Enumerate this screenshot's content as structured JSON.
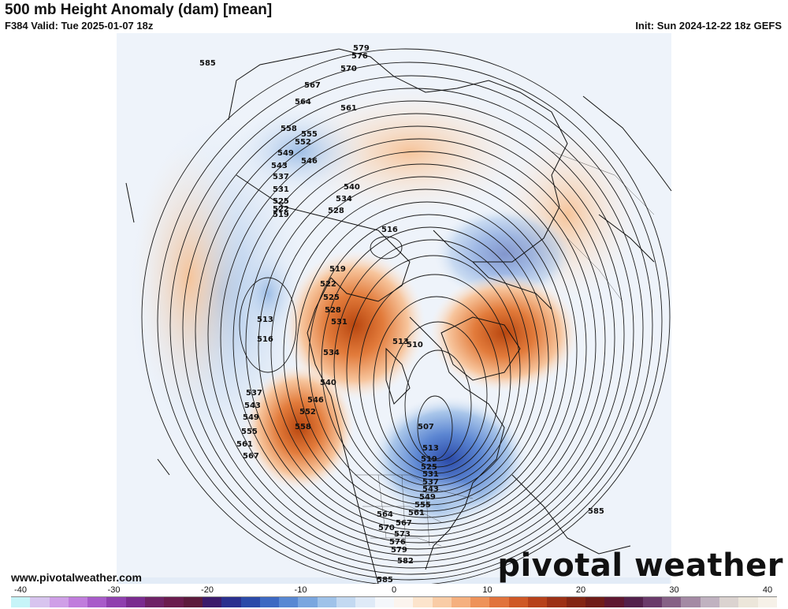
{
  "header": {
    "title": "500 mb Height Anomaly (dam) [mean]",
    "valid": "F384 Valid: Tue 2025-01-07 18z",
    "init": "Init: Sun 2024-12-22 18z GEFS"
  },
  "footer": {
    "site": "www.pivotalweather.com",
    "logo": "pivotal weather"
  },
  "colorbar": {
    "ticks": [
      "-40",
      "-30",
      "-20",
      "-10",
      "0",
      "10",
      "20",
      "30",
      "40"
    ],
    "colors": [
      "#c6f4f8",
      "#d8c4ef",
      "#cf9fe7",
      "#c07cdc",
      "#a85bc9",
      "#8f3fae",
      "#7a2b8f",
      "#6e2266",
      "#6a1c4e",
      "#5c1a3c",
      "#3b1a6b",
      "#2a2f8e",
      "#2b4aa8",
      "#3d69c2",
      "#5888d3",
      "#7aa6df",
      "#9fc2e9",
      "#c3d9f1",
      "#dfeaf7",
      "#f4f7fb",
      "#fbf4ee",
      "#fce4cc",
      "#f9cca6",
      "#f5b07f",
      "#ee925a",
      "#e1733c",
      "#cf5826",
      "#b7411a",
      "#9c3015",
      "#832513",
      "#6f1c18",
      "#5f1730",
      "#53204b",
      "#6a3a6a",
      "#866186",
      "#a48aa4",
      "#c0b2c0",
      "#dbd3d0",
      "#ece6da",
      "#f6f1e8"
    ]
  },
  "map": {
    "contour_labels": [
      "585",
      "579",
      "576",
      "570",
      "567",
      "564",
      "561",
      "558",
      "555",
      "552",
      "549",
      "546",
      "543",
      "540",
      "537",
      "534",
      "531",
      "528",
      "525",
      "522",
      "519",
      "516",
      "513",
      "510",
      "507"
    ]
  }
}
